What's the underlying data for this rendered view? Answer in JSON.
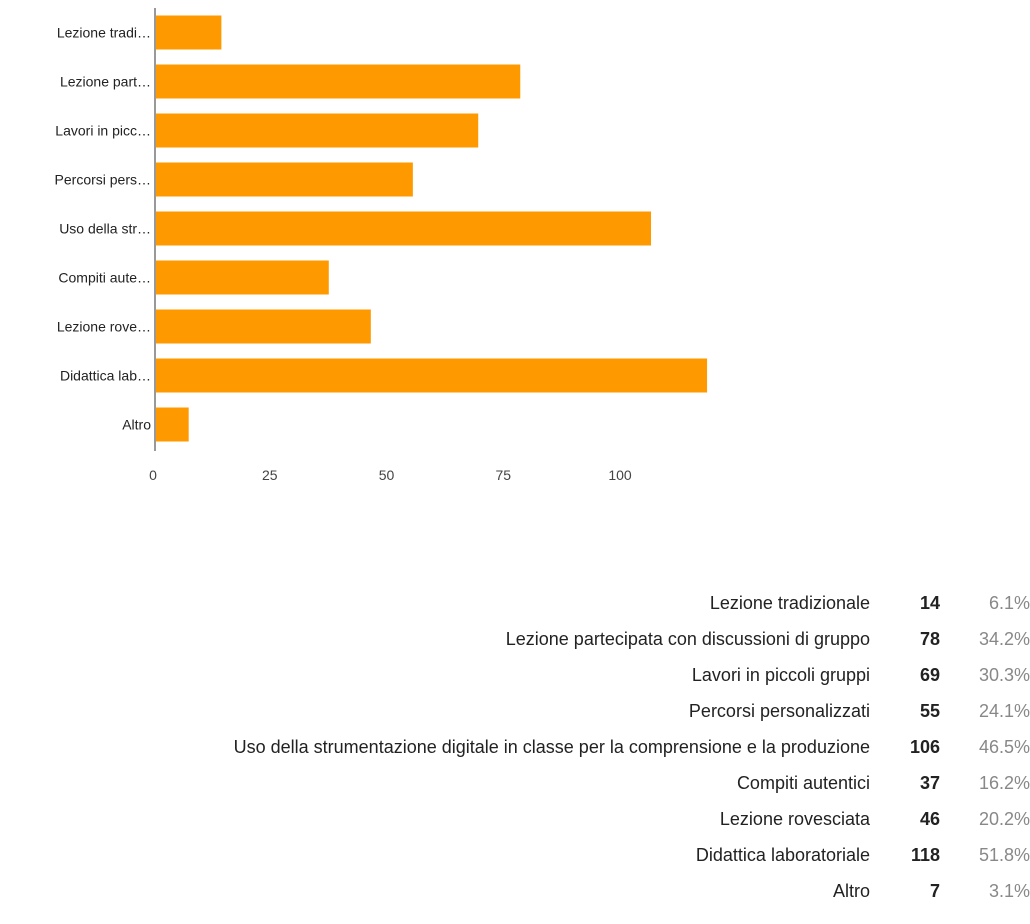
{
  "chart_data": {
    "type": "bar",
    "orientation": "horizontal",
    "categories": [
      "Lezione tradi…",
      "Lezione part…",
      "Lavori in picc…",
      "Percorsi pers…",
      "Uso della str…",
      "Compiti aute…",
      "Lezione rove…",
      "Didattica lab…",
      "Altro"
    ],
    "values": [
      14,
      78,
      69,
      55,
      106,
      37,
      46,
      118,
      7
    ],
    "xticks": [
      0,
      25,
      50,
      75,
      100
    ],
    "xlim": [
      0,
      125
    ],
    "grid": false,
    "bar_color": "#ff9900"
  },
  "summary": [
    {
      "label": "Lezione tradizionale",
      "count": "14",
      "percent": "6.1%"
    },
    {
      "label": "Lezione partecipata con discussioni di gruppo",
      "count": "78",
      "percent": "34.2%"
    },
    {
      "label": "Lavori in piccoli gruppi",
      "count": "69",
      "percent": "30.3%"
    },
    {
      "label": "Percorsi personalizzati",
      "count": "55",
      "percent": "24.1%"
    },
    {
      "label": "Uso della strumentazione digitale in classe per la comprensione e la produzione",
      "count": "106",
      "percent": "46.5%"
    },
    {
      "label": "Compiti autentici",
      "count": "37",
      "percent": "16.2%"
    },
    {
      "label": "Lezione rovesciata",
      "count": "46",
      "percent": "20.2%"
    },
    {
      "label": "Didattica laboratoriale",
      "count": "118",
      "percent": "51.8%"
    },
    {
      "label": "Altro",
      "count": "7",
      "percent": "3.1%"
    }
  ]
}
